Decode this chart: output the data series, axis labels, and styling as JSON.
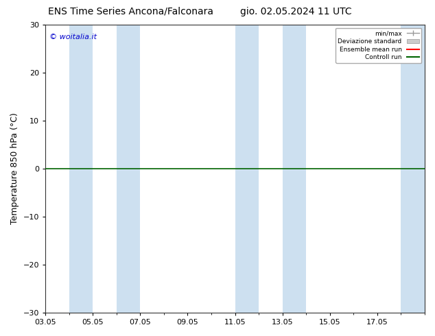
{
  "title_left": "ENS Time Series Ancona/Falconara",
  "title_right": "gio. 02.05.2024 11 UTC",
  "ylabel": "Temperature 850 hPa (°C)",
  "watermark": "© woitalia.it",
  "ylim": [
    -30,
    30
  ],
  "yticks": [
    -30,
    -20,
    -10,
    0,
    10,
    20,
    30
  ],
  "xtick_labels": [
    "03.05",
    "05.05",
    "07.05",
    "09.05",
    "11.05",
    "13.05",
    "15.05",
    "17.05"
  ],
  "xtick_positions": [
    0,
    2,
    4,
    6,
    8,
    10,
    12,
    14
  ],
  "xlim": [
    0,
    16
  ],
  "hline_y": 0,
  "hline_color": "#006400",
  "shade_bands": [
    {
      "x_start": 1.0,
      "x_end": 2.0,
      "color": "#cde0f0"
    },
    {
      "x_start": 3.0,
      "x_end": 4.0,
      "color": "#cde0f0"
    },
    {
      "x_start": 8.0,
      "x_end": 9.0,
      "color": "#cde0f0"
    },
    {
      "x_start": 10.0,
      "x_end": 11.0,
      "color": "#cde0f0"
    },
    {
      "x_start": 15.0,
      "x_end": 16.0,
      "color": "#cde0f0"
    }
  ],
  "legend_entries": [
    {
      "label": "min/max",
      "color": "#999999",
      "type": "errbar"
    },
    {
      "label": "Deviazione standard",
      "color": "#cccccc",
      "type": "band"
    },
    {
      "label": "Ensemble mean run",
      "color": "#ff0000",
      "type": "line"
    },
    {
      "label": "Controll run",
      "color": "#006400",
      "type": "line"
    }
  ],
  "bg_color": "#ffffff",
  "title_fontsize": 10,
  "tick_fontsize": 8,
  "ylabel_fontsize": 9,
  "watermark_color": "#0000cc",
  "spine_color": "#333333"
}
